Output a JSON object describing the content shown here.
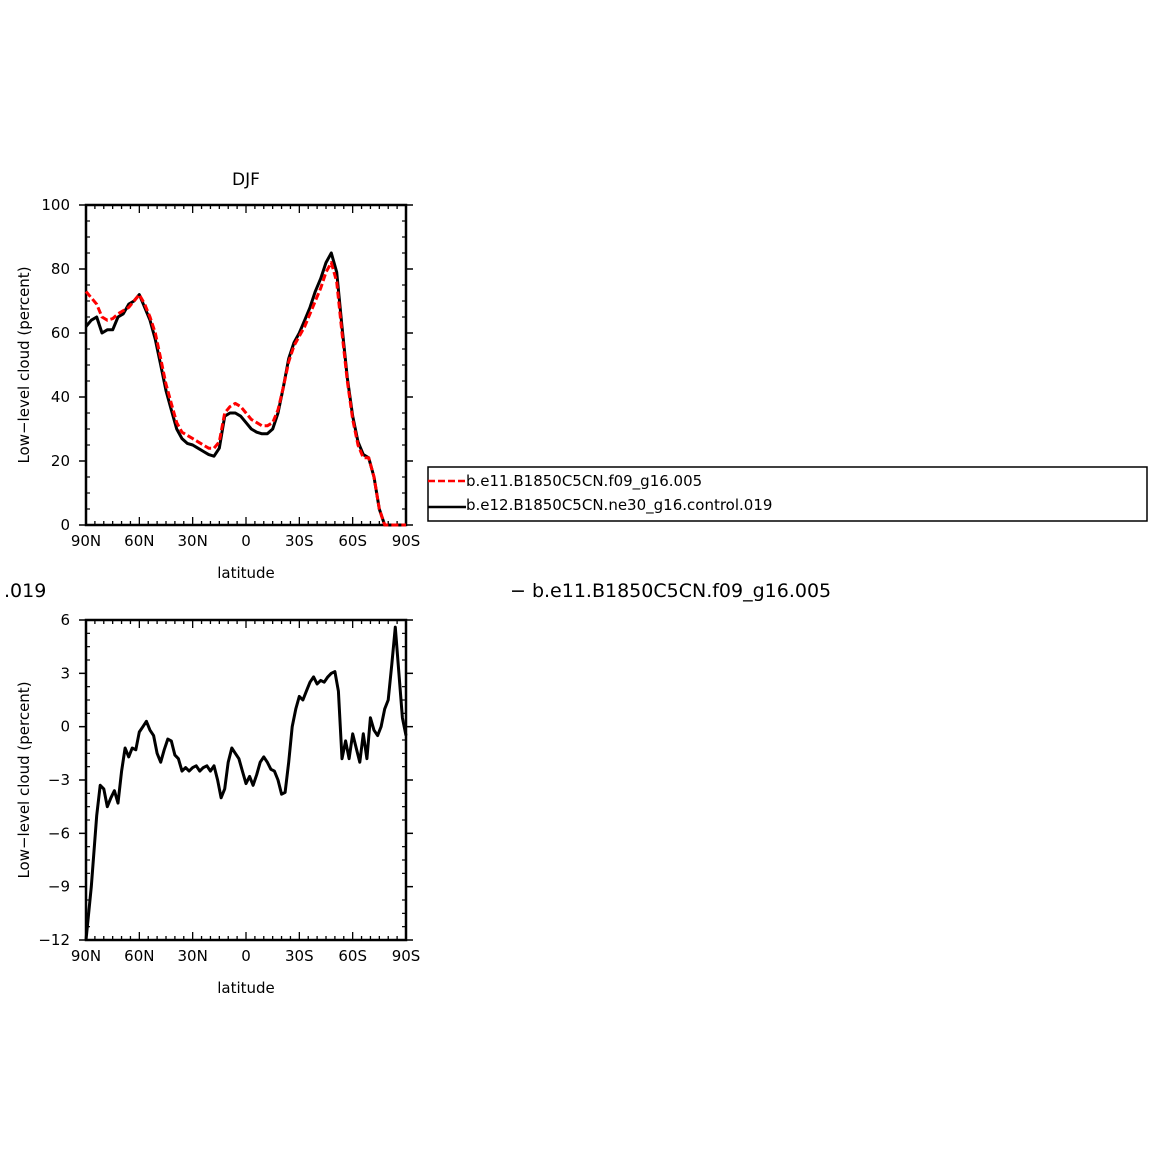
{
  "header_fragments": {
    "left": ".019",
    "right": "−  b.e11.B1850C5CN.f09_g16.005"
  },
  "legend": {
    "entries": [
      {
        "label": "b.e11.B1850C5CN.f09_g16.005",
        "color": "#ff0000",
        "dash": "dashed"
      },
      {
        "label": "b.e12.B1850C5CN.ne30_g16.control.019",
        "color": "#000000",
        "dash": "solid"
      }
    ]
  },
  "chart_data": [
    {
      "type": "line",
      "title": "DJF",
      "xlabel": "latitude",
      "ylabel": "Low−level cloud (percent)",
      "xlim": [
        90,
        -90
      ],
      "ylim": [
        0,
        100
      ],
      "x_ticks": [
        90,
        60,
        30,
        0,
        -30,
        -60,
        -90
      ],
      "x_tick_labels": [
        "90N",
        "60N",
        "30N",
        "0",
        "30S",
        "60S",
        "90S"
      ],
      "y_ticks": [
        0,
        20,
        40,
        60,
        80,
        100
      ],
      "y_tick_labels": [
        "0",
        "20",
        "40",
        "60",
        "80",
        "100"
      ],
      "grid": false,
      "legend_position": "right",
      "series": [
        {
          "name": "b.e11.B1850C5CN.f09_g16.005",
          "color": "#ff0000",
          "dash": "dashed",
          "x": [
            90,
            87,
            84,
            81,
            78,
            75,
            72,
            69,
            66,
            63,
            60,
            57,
            54,
            51,
            48,
            45,
            42,
            39,
            36,
            33,
            30,
            27,
            24,
            21,
            18,
            15,
            12,
            9,
            6,
            3,
            0,
            -3,
            -6,
            -9,
            -12,
            -15,
            -18,
            -21,
            -24,
            -27,
            -30,
            -33,
            -36,
            -39,
            -42,
            -45,
            -48,
            -51,
            -54,
            -57,
            -60,
            -63,
            -66,
            -69,
            -72,
            -75,
            -78,
            -81,
            -84,
            -87,
            -90
          ],
          "y": [
            73,
            71,
            69,
            65,
            64,
            64.5,
            66,
            67,
            68,
            70,
            72,
            69,
            65,
            60,
            52,
            44,
            38,
            32,
            29,
            28,
            27,
            26,
            25,
            24,
            24,
            26,
            35,
            37,
            38,
            37,
            35,
            33,
            32,
            31,
            31,
            32,
            36,
            43,
            51,
            56,
            59,
            62,
            66,
            70,
            74,
            79,
            82,
            76,
            60,
            45,
            33,
            25,
            21,
            21,
            15,
            5,
            0,
            0,
            0,
            0,
            0
          ]
        },
        {
          "name": "b.e12.B1850C5CN.ne30_g16.control.019",
          "color": "#000000",
          "dash": "solid",
          "x": [
            90,
            87,
            84,
            81,
            78,
            75,
            72,
            69,
            66,
            63,
            60,
            57,
            54,
            51,
            48,
            45,
            42,
            39,
            36,
            33,
            30,
            27,
            24,
            21,
            18,
            15,
            12,
            9,
            6,
            3,
            0,
            -3,
            -6,
            -9,
            -12,
            -15,
            -18,
            -21,
            -24,
            -27,
            -30,
            -33,
            -36,
            -39,
            -42,
            -45,
            -48,
            -51,
            -54,
            -57,
            -60,
            -63,
            -66,
            -69,
            -72,
            -75,
            -78,
            -81,
            -84,
            -87,
            -90
          ],
          "y": [
            62,
            64,
            65,
            60,
            61,
            61,
            65,
            66,
            69,
            70,
            72,
            68,
            64,
            58,
            50,
            42,
            36,
            30,
            27,
            25.5,
            25,
            24,
            23,
            22,
            21.5,
            24,
            34,
            35,
            35,
            34,
            32,
            30,
            29,
            28.5,
            28.5,
            30,
            35,
            43,
            52,
            57,
            60,
            64,
            68,
            73,
            77,
            82,
            85,
            79,
            62,
            46,
            34,
            26,
            22,
            21,
            15,
            5,
            0,
            0,
            0,
            0,
            0
          ]
        }
      ]
    },
    {
      "type": "line",
      "title": "",
      "xlabel": "latitude",
      "ylabel": "Low−level cloud (percent)",
      "xlim": [
        90,
        -90
      ],
      "ylim": [
        -12,
        6
      ],
      "x_ticks": [
        90,
        60,
        30,
        0,
        -30,
        -60,
        -90
      ],
      "x_tick_labels": [
        "90N",
        "60N",
        "30N",
        "0",
        "30S",
        "60S",
        "90S"
      ],
      "y_ticks": [
        -12,
        -9,
        -6,
        -3,
        0,
        3,
        6
      ],
      "y_tick_labels": [
        "−12",
        "−9",
        "−6",
        "−3",
        "0",
        "3",
        "6"
      ],
      "grid": false,
      "series": [
        {
          "name": "",
          "color": "#000000",
          "dash": "solid",
          "x": [
            90,
            87,
            84,
            82,
            80,
            78,
            76,
            74,
            72,
            70,
            68,
            66,
            64,
            62,
            60,
            58,
            56,
            54,
            52,
            50,
            48,
            46,
            44,
            42,
            40,
            38,
            36,
            34,
            32,
            30,
            28,
            26,
            24,
            22,
            20,
            18,
            16,
            14,
            12,
            10,
            8,
            6,
            4,
            2,
            0,
            -2,
            -4,
            -6,
            -8,
            -10,
            -12,
            -14,
            -16,
            -18,
            -20,
            -22,
            -24,
            -26,
            -28,
            -30,
            -32,
            -34,
            -36,
            -38,
            -40,
            -42,
            -44,
            -46,
            -48,
            -50,
            -52,
            -54,
            -56,
            -58,
            -60,
            -62,
            -64,
            -66,
            -68,
            -70,
            -72,
            -74,
            -76,
            -78,
            -80,
            -82,
            -84,
            -86,
            -88,
            -90
          ],
          "y": [
            -12,
            -9,
            -5,
            -3.3,
            -3.5,
            -4.5,
            -4,
            -3.6,
            -4.3,
            -2.5,
            -1.2,
            -1.7,
            -1.2,
            -1.3,
            -0.3,
            0,
            0.3,
            -0.2,
            -0.5,
            -1.5,
            -2,
            -1.3,
            -0.7,
            -0.8,
            -1.6,
            -1.8,
            -2.5,
            -2.3,
            -2.5,
            -2.3,
            -2.2,
            -2.5,
            -2.3,
            -2.2,
            -2.5,
            -2.2,
            -3,
            -4,
            -3.5,
            -2,
            -1.2,
            -1.5,
            -1.8,
            -2.5,
            -3.2,
            -2.8,
            -3.3,
            -2.7,
            -2,
            -1.7,
            -2,
            -2.4,
            -2.5,
            -3,
            -3.8,
            -3.7,
            -2,
            0,
            1,
            1.7,
            1.5,
            2,
            2.5,
            2.8,
            2.4,
            2.6,
            2.5,
            2.8,
            3,
            3.1,
            2,
            -1.8,
            -0.8,
            -1.8,
            -0.4,
            -1.2,
            -2,
            -0.4,
            -1.8,
            0.5,
            -0.2,
            -0.5,
            0,
            1,
            1.5,
            3.5,
            5.6,
            3,
            0.5,
            -0.5
          ]
        }
      ]
    }
  ]
}
